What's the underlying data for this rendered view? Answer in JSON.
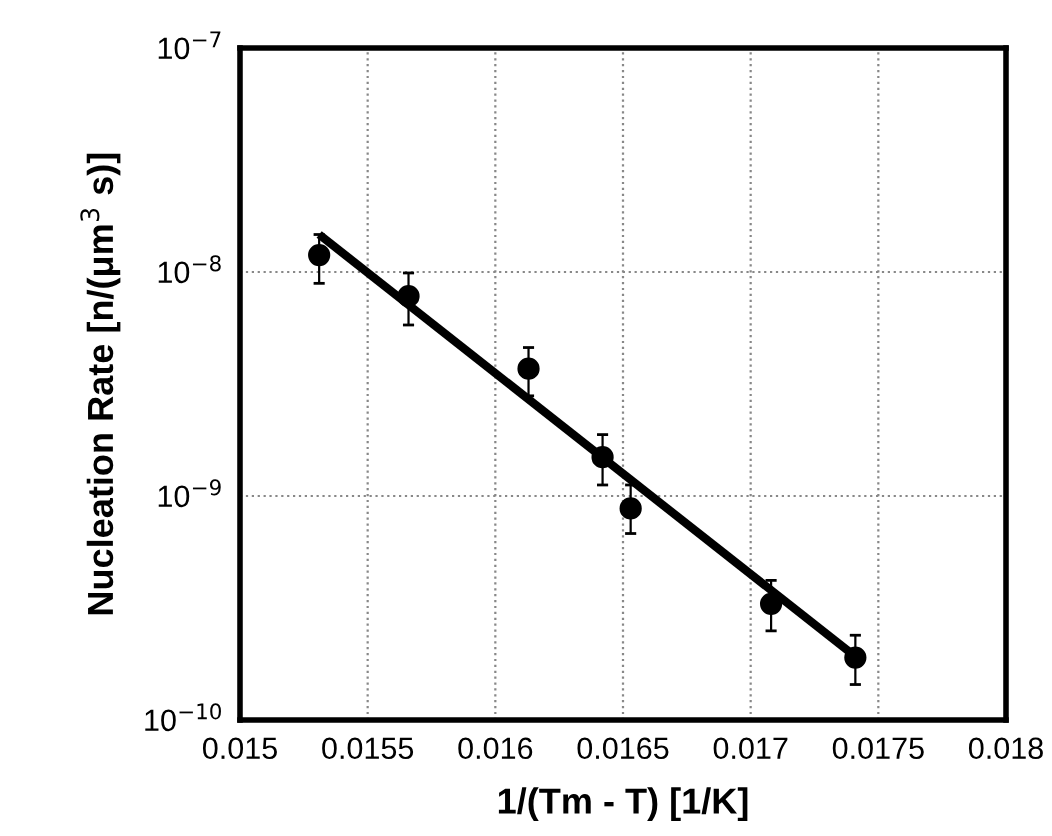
{
  "chart_data": {
    "type": "scatter",
    "xlabel": "1/(Tm - T) [1/K]",
    "ylabel": "Nucleation Rate [n/(μm$^{3}$ s)]",
    "log": "y",
    "grid": true,
    "marker": "circle",
    "xlim": [
      0.015,
      0.018
    ],
    "xticks": [
      0.015,
      0.0155,
      0.016,
      0.0165,
      0.017,
      0.0175,
      0.018
    ],
    "ylim": [
      1e-10,
      1e-07
    ],
    "yticks": [
      {
        "value": 1e-10,
        "label": "10$^{−10}$"
      },
      {
        "value": 1e-09,
        "label": "10$^{−9}$"
      },
      {
        "value": 1e-08,
        "label": "10$^{−8}$"
      },
      {
        "value": 1e-07,
        "label": "10$^{−7}$"
      }
    ],
    "series": [
      {
        "color": "#000000",
        "x": [
          0.01531,
          0.01566,
          0.01613,
          0.01642,
          0.01653,
          0.01708,
          0.01741
        ],
        "values": [
          1.19e-08,
          7.8e-09,
          3.7e-09,
          1.49e-09,
          8.8e-10,
          3.3e-10,
          1.9e-10
        ],
        "errors": [
          [
            8.9e-09,
            1.47e-08
          ],
          [
            5.8e-09,
            9.9e-09
          ],
          [
            2.8e-09,
            4.6e-09
          ],
          [
            1.12e-09,
            1.88e-09
          ],
          [
            6.8e-10,
            1.12e-09
          ],
          [
            2.5e-10,
            4.2e-10
          ],
          [
            1.44e-10,
            2.39e-10
          ]
        ]
      },
      {
        "type": "line",
        "color": "#000000",
        "marker": "none",
        "x": [
          0.01531,
          0.01741
        ],
        "values": [
          1.47e-08,
          1.92e-10
        ]
      }
    ]
  }
}
